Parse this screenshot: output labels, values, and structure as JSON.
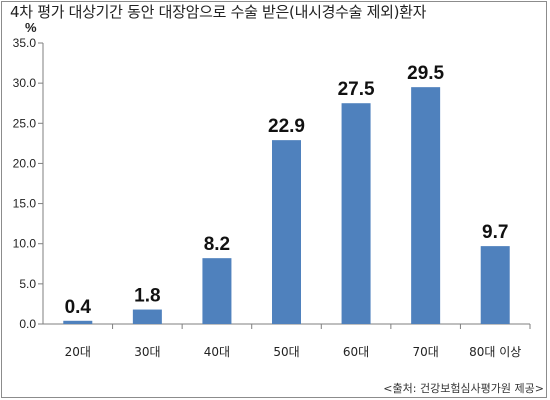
{
  "title": "4차 평가 대상기간 동안 대장암으로 수술 받은(내시경수술 제외)환자",
  "unit": "%",
  "source": "<출처: 건강보험심사평가원 제공>",
  "chart_data": {
    "type": "bar",
    "categories": [
      "20대",
      "30대",
      "40대",
      "50대",
      "60대",
      "70대",
      "80대 이상"
    ],
    "values": [
      0.4,
      1.8,
      8.2,
      22.9,
      27.5,
      29.5,
      9.7
    ],
    "value_labels": [
      "0.4",
      "1.8",
      "8.2",
      "22.9",
      "27.5",
      "29.5",
      "9.7"
    ],
    "y_ticks": [
      "0.0",
      "5.0",
      "10.0",
      "15.0",
      "20.0",
      "25.0",
      "30.0",
      "35.0"
    ],
    "ylim": [
      0,
      35
    ],
    "bar_color": "#4f81bd",
    "grid": false,
    "legend": "none"
  }
}
